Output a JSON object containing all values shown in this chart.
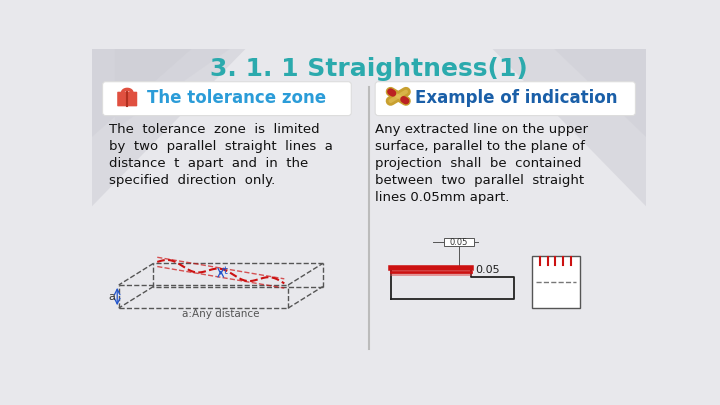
{
  "title": "3. 1. 1 Straightness(1)",
  "title_color": "#2BAAAD",
  "title_fontsize": 18,
  "bg_color": "#e8e8ec",
  "left_header": "The tolerance zone",
  "left_header_color": "#2B9CD8",
  "right_header": "Example of indication",
  "right_header_color": "#1a5fa8",
  "left_text_lines": [
    "The  tolerance  zone  is  limited",
    "by  two  parallel  straight  lines  a",
    "distance  t  apart  and  in  the",
    "specified  direction  only."
  ],
  "right_text_lines": [
    "Any extracted line on the upper",
    "surface, parallel to the plane of",
    "projection  shall  be  contained",
    "between  two  parallel  straight",
    "lines 0.05mm apart."
  ],
  "divider_color": "#bbbbbb",
  "text_color": "#111111",
  "text_fontsize": 9.5,
  "diagram_color": "#555555",
  "red_color": "#cc1111",
  "blue_color": "#2255cc"
}
